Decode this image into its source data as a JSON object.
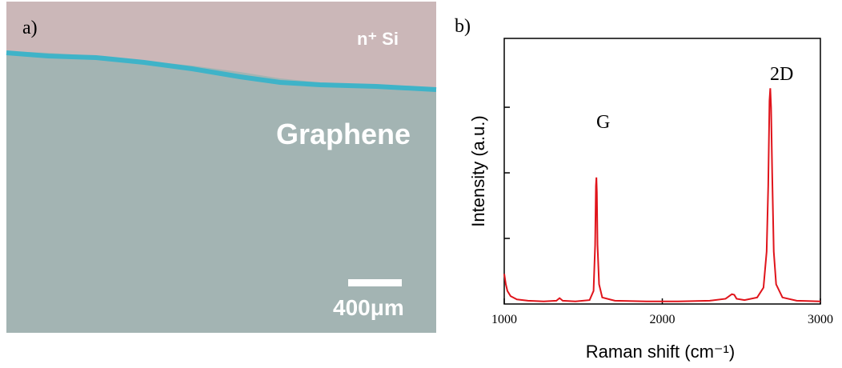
{
  "panel_a": {
    "label": "a)",
    "region_label": "n⁺ Si",
    "material_label": "Graphene",
    "scale_bar_label": "400μm"
  },
  "chart_data": {
    "type": "line",
    "panel_label": "b)",
    "x_label": "Raman shift (cm⁻¹)",
    "y_label": "Intensity (a.u.)",
    "annotations": [
      "G",
      "2D"
    ],
    "xlim": [
      1000,
      3000
    ],
    "xticks": [
      1000,
      2000,
      3000
    ],
    "ylim": [
      0,
      4.05
    ],
    "yticks": [
      1,
      2,
      3
    ],
    "x": [
      1000,
      1010,
      1020,
      1040,
      1080,
      1150,
      1250,
      1330,
      1350,
      1370,
      1450,
      1540,
      1565,
      1575,
      1580,
      1583,
      1586,
      1590,
      1600,
      1620,
      1700,
      1900,
      2100,
      2300,
      2400,
      2440,
      2455,
      2470,
      2520,
      2600,
      2640,
      2660,
      2670,
      2678,
      2683,
      2688,
      2695,
      2705,
      2720,
      2760,
      2850,
      3000
    ],
    "series": [
      {
        "color": "#e0141b",
        "values": [
          0.46,
          0.3,
          0.2,
          0.12,
          0.07,
          0.05,
          0.04,
          0.05,
          0.09,
          0.05,
          0.04,
          0.06,
          0.2,
          0.9,
          1.8,
          1.93,
          1.7,
          0.9,
          0.3,
          0.1,
          0.05,
          0.04,
          0.04,
          0.05,
          0.08,
          0.15,
          0.14,
          0.08,
          0.06,
          0.1,
          0.25,
          0.8,
          1.8,
          3.1,
          3.29,
          3.0,
          2.0,
          0.8,
          0.3,
          0.1,
          0.05,
          0.04
        ]
      }
    ]
  }
}
